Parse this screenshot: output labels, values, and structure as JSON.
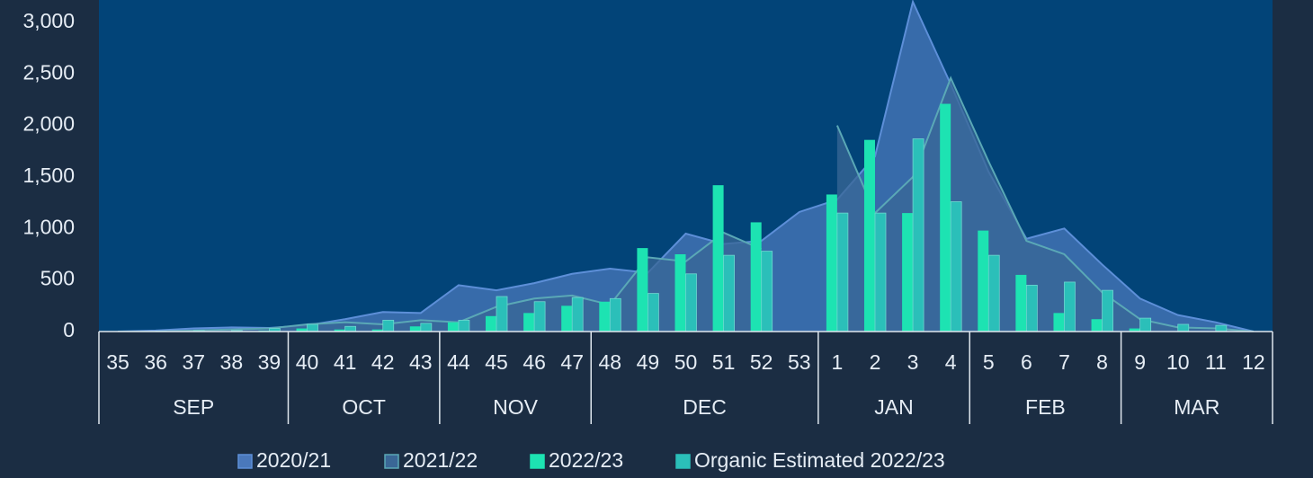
{
  "chart_data": {
    "type": "combo",
    "categories": [
      "35",
      "36",
      "37",
      "38",
      "39",
      "40",
      "41",
      "42",
      "43",
      "44",
      "45",
      "46",
      "47",
      "48",
      "49",
      "50",
      "51",
      "52",
      "53",
      "1",
      "2",
      "3",
      "4",
      "5",
      "6",
      "7",
      "8",
      "9",
      "10",
      "11",
      "12"
    ],
    "groups": [
      {
        "label": "SEP",
        "count": 5
      },
      {
        "label": "OCT",
        "count": 4
      },
      {
        "label": "NOV",
        "count": 4
      },
      {
        "label": "DEC",
        "count": 6
      },
      {
        "label": "JAN",
        "count": 4
      },
      {
        "label": "FEB",
        "count": 4
      },
      {
        "label": "MAR",
        "count": 4
      }
    ],
    "series": [
      {
        "name": "2020/21",
        "type": "area",
        "color": "#5d8fd8",
        "values": [
          0,
          10,
          30,
          40,
          35,
          60,
          120,
          190,
          180,
          450,
          400,
          470,
          560,
          610,
          570,
          950,
          850,
          880,
          1160,
          1280,
          1700,
          3200,
          2400,
          1550,
          900,
          1000,
          650,
          320,
          160,
          90,
          0
        ]
      },
      {
        "name": "2021/22",
        "type": "area",
        "color": "#5aa8b6",
        "values": [
          0,
          0,
          10,
          20,
          30,
          70,
          90,
          70,
          110,
          90,
          240,
          320,
          350,
          260,
          720,
          680,
          960,
          800,
          null,
          2000,
          1150,
          1500,
          2460,
          1650,
          880,
          750,
          380,
          120,
          40,
          30,
          0
        ]
      },
      {
        "name": "2022/23",
        "type": "bar",
        "color": "#1de3b2",
        "values": [
          0,
          0,
          0,
          0,
          10,
          30,
          20,
          20,
          50,
          90,
          150,
          180,
          250,
          290,
          810,
          750,
          1420,
          1060,
          null,
          1330,
          1860,
          1150,
          2210,
          980,
          550,
          180,
          120,
          30,
          0,
          0,
          0
        ]
      },
      {
        "name": "Organic Estimated 2022/23",
        "type": "bar",
        "color": "#2bbfb9",
        "values": [
          0,
          5,
          10,
          10,
          30,
          70,
          50,
          110,
          80,
          110,
          340,
          290,
          330,
          320,
          370,
          560,
          740,
          780,
          null,
          1150,
          1150,
          1870,
          1260,
          740,
          450,
          480,
          400,
          130,
          70,
          60,
          0
        ]
      }
    ],
    "ylim": [
      0,
      3200
    ],
    "yticks": [
      0,
      500,
      {
        "value": 1000,
        "label": "1,000"
      },
      {
        "value": 1500,
        "label": "1,500"
      },
      {
        "value": 2000,
        "label": "2,000"
      },
      {
        "value": 2500,
        "label": "2,500"
      },
      {
        "value": 3000,
        "label": "3,000"
      }
    ],
    "legend": "bottom"
  }
}
